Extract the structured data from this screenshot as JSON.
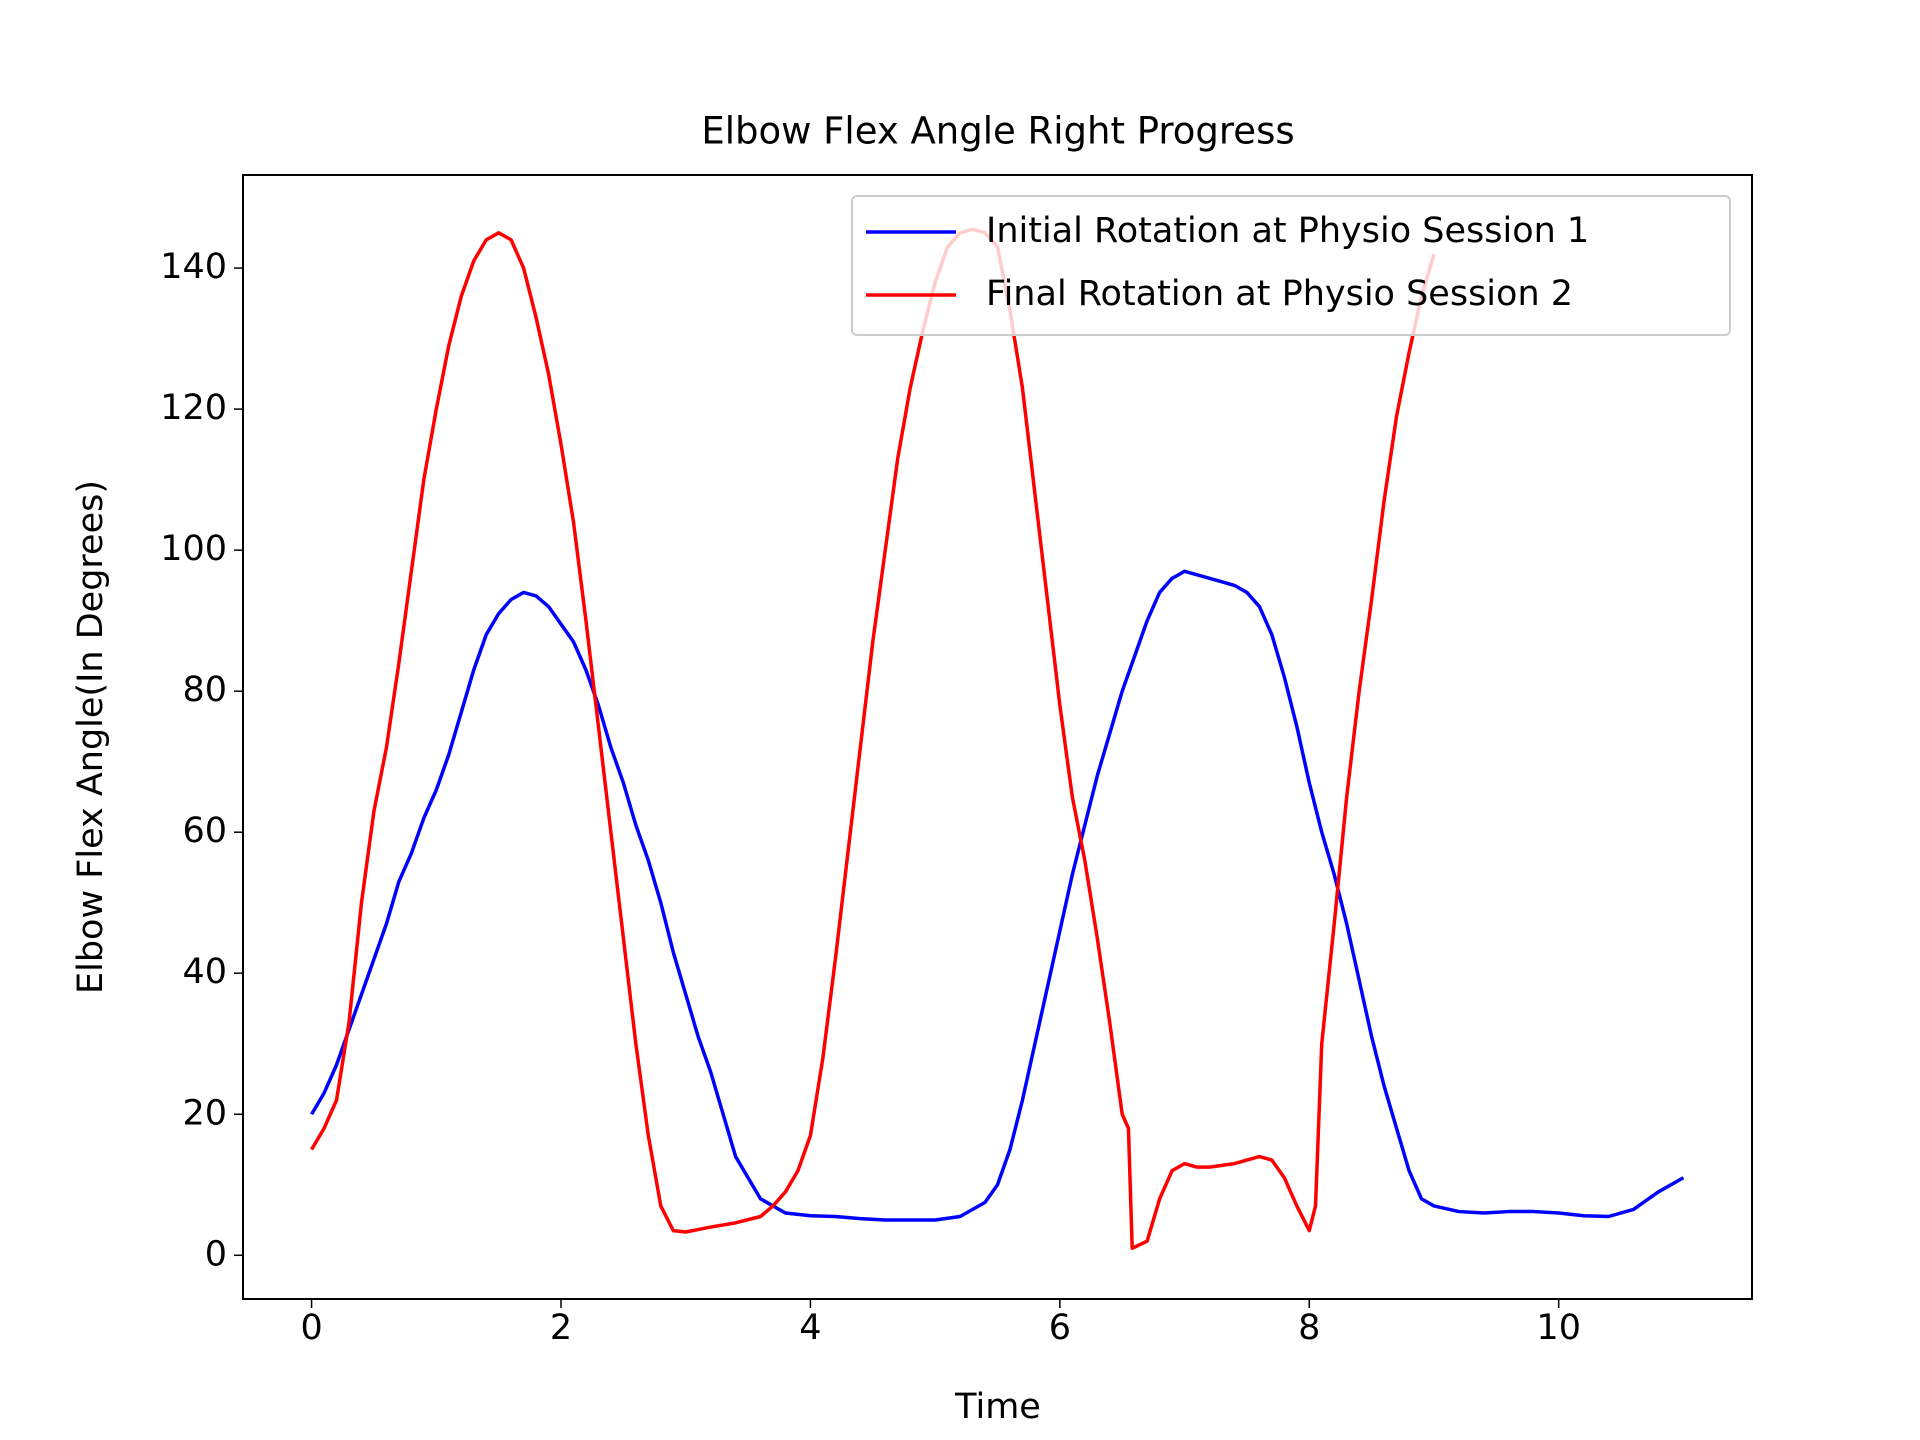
{
  "chart_data": {
    "type": "line",
    "title": "Elbow Flex Angle Right Progress",
    "x_label": "Time",
    "y_label": "Elbow Flex Angle(In Degrees)",
    "xlim": [
      -0.55,
      11.55
    ],
    "ylim": [
      -6.2,
      153.2
    ],
    "xticks": [
      0,
      2,
      4,
      6,
      8,
      10
    ],
    "yticks": [
      0,
      20,
      40,
      60,
      80,
      100,
      120,
      140
    ],
    "legend": "upper right",
    "grid": false,
    "series": [
      {
        "name": "Initial Rotation at Physio Session 1",
        "color": "#0000ff",
        "x": [
          0,
          0.1,
          0.2,
          0.3,
          0.4,
          0.5,
          0.6,
          0.7,
          0.8,
          0.9,
          1.0,
          1.1,
          1.2,
          1.3,
          1.4,
          1.5,
          1.6,
          1.7,
          1.8,
          1.9,
          2.0,
          2.1,
          2.2,
          2.3,
          2.4,
          2.5,
          2.6,
          2.7,
          2.8,
          2.9,
          3.0,
          3.1,
          3.2,
          3.3,
          3.4,
          3.5,
          3.6,
          3.7,
          3.8,
          3.9,
          4.0,
          4.2,
          4.4,
          4.6,
          4.8,
          5.0,
          5.2,
          5.4,
          5.5,
          5.6,
          5.7,
          5.8,
          5.9,
          6.0,
          6.1,
          6.2,
          6.3,
          6.4,
          6.5,
          6.6,
          6.7,
          6.8,
          6.9,
          7.0,
          7.1,
          7.2,
          7.3,
          7.4,
          7.5,
          7.6,
          7.7,
          7.8,
          7.9,
          8.0,
          8.1,
          8.2,
          8.3,
          8.4,
          8.5,
          8.6,
          8.7,
          8.8,
          8.9,
          9.0,
          9.2,
          9.4,
          9.6,
          9.8,
          10.0,
          10.2,
          10.4,
          10.6,
          10.8,
          11.0
        ],
        "values": [
          20,
          23,
          27,
          32,
          37,
          42,
          47,
          53,
          57,
          62,
          66,
          71,
          77,
          83,
          88,
          91,
          93,
          94,
          93.5,
          92,
          89.5,
          87,
          83,
          78,
          72,
          67,
          61,
          56,
          50,
          43,
          37,
          31,
          26,
          20,
          14,
          11,
          8,
          7,
          6,
          5.8,
          5.6,
          5.5,
          5.2,
          5,
          5,
          5,
          5.5,
          7.5,
          10,
          15,
          22,
          30,
          38,
          46,
          54,
          61,
          68,
          74,
          80,
          85,
          90,
          94,
          96,
          97,
          96.5,
          96,
          95.5,
          95,
          94,
          92,
          88,
          82,
          75,
          67,
          60,
          54,
          47,
          39,
          31,
          24,
          18,
          12,
          8,
          7,
          6.2,
          6,
          6.2,
          6.2,
          6,
          5.6,
          5.5,
          6.5,
          9,
          11
        ]
      },
      {
        "name": "Final Rotation at Physio Session 2",
        "color": "#ff0000",
        "x": [
          0,
          0.1,
          0.2,
          0.3,
          0.4,
          0.5,
          0.6,
          0.7,
          0.8,
          0.9,
          1.0,
          1.1,
          1.2,
          1.3,
          1.4,
          1.5,
          1.6,
          1.7,
          1.8,
          1.9,
          2.0,
          2.1,
          2.2,
          2.3,
          2.4,
          2.5,
          2.6,
          2.7,
          2.8,
          2.9,
          3.0,
          3.2,
          3.4,
          3.6,
          3.7,
          3.8,
          3.9,
          4.0,
          4.1,
          4.2,
          4.3,
          4.4,
          4.5,
          4.6,
          4.7,
          4.8,
          4.9,
          5.0,
          5.1,
          5.2,
          5.3,
          5.4,
          5.5,
          5.6,
          5.7,
          5.8,
          5.9,
          6.0,
          6.1,
          6.2,
          6.3,
          6.4,
          6.5,
          6.55,
          6.58,
          6.7,
          6.8,
          6.9,
          7.0,
          7.1,
          7.2,
          7.4,
          7.6,
          7.7,
          7.8,
          7.9,
          8.0,
          8.05,
          8.1,
          8.2,
          8.3,
          8.4,
          8.5,
          8.6,
          8.7,
          8.8,
          8.9,
          9.0
        ],
        "values": [
          15,
          18,
          22,
          33,
          50,
          63,
          72,
          84,
          97,
          110,
          120,
          129,
          136,
          141,
          144,
          145,
          144,
          140,
          133,
          125,
          115,
          104,
          90,
          75,
          60,
          45,
          30,
          17,
          7,
          3.5,
          3.3,
          4,
          4.6,
          5.5,
          7,
          9,
          12,
          17,
          28,
          42,
          57,
          72,
          87,
          100,
          113,
          123,
          131,
          138,
          143,
          145,
          145.5,
          145,
          143,
          134,
          123,
          108,
          93,
          78,
          65,
          56,
          45,
          33,
          20,
          18,
          1,
          2,
          8,
          12,
          13,
          12.5,
          12.5,
          13,
          14,
          13.5,
          11,
          7,
          3.5,
          7,
          30,
          47,
          65,
          80,
          93,
          107,
          119,
          128,
          136,
          142
        ]
      }
    ]
  }
}
